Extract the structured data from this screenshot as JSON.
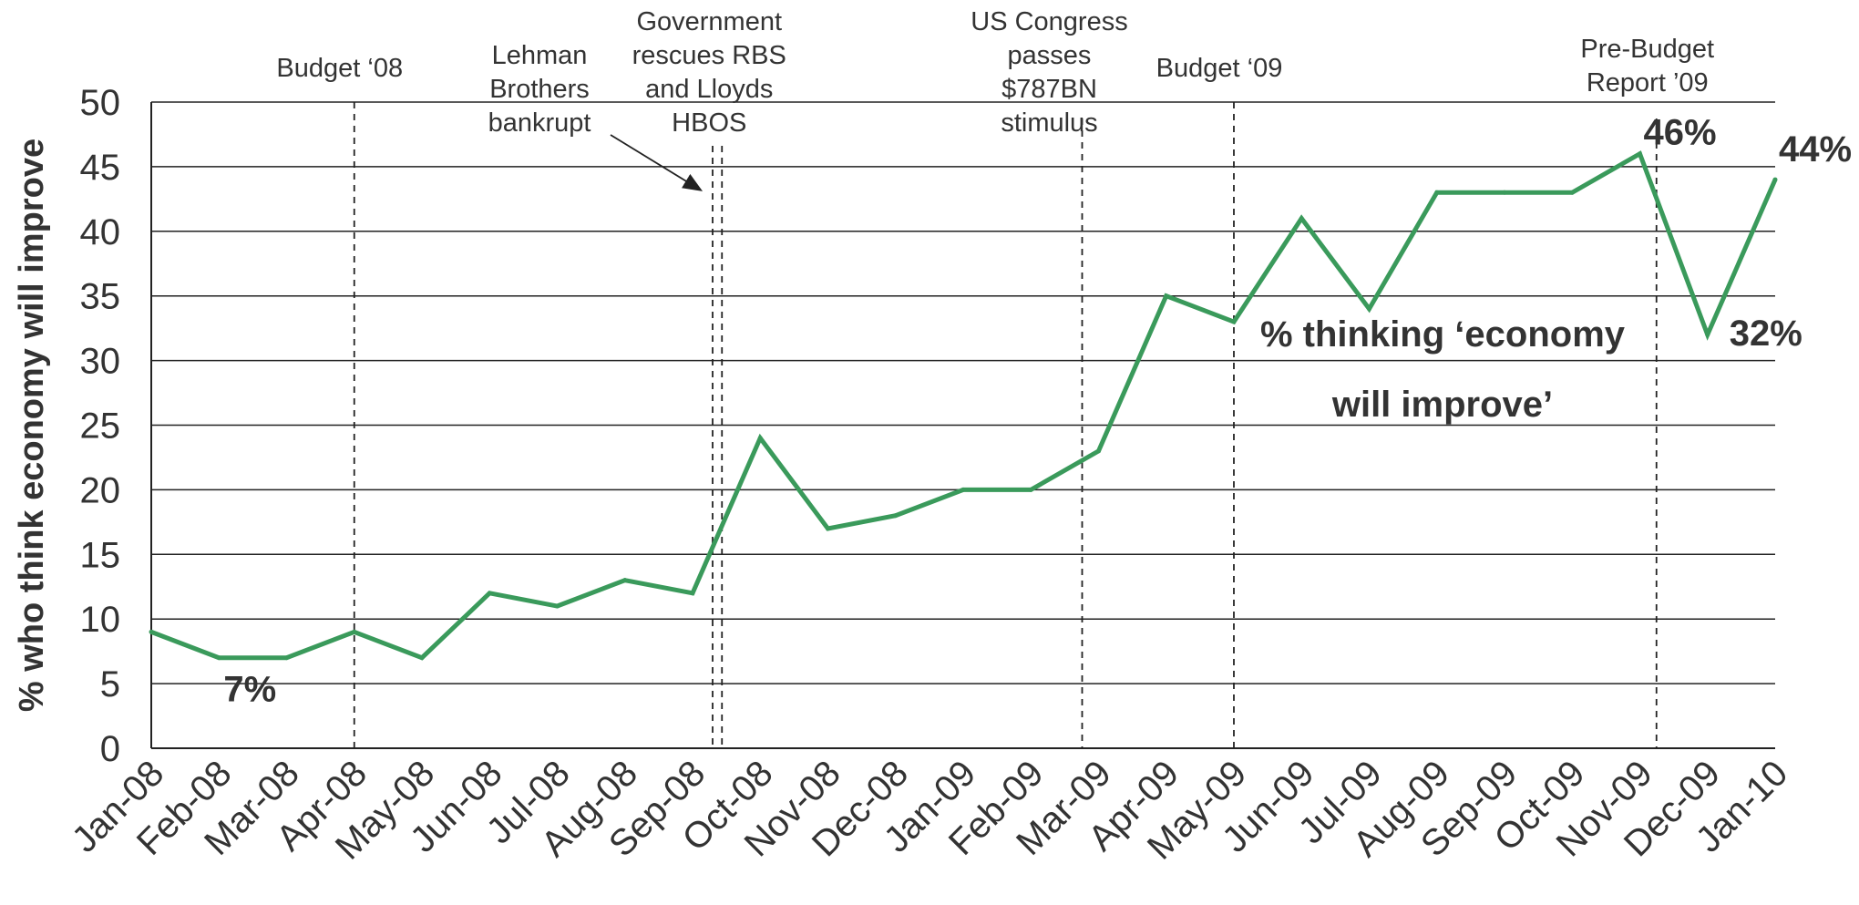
{
  "chart_data": {
    "type": "line",
    "ylabel": "% who think economy will improve",
    "ylim": [
      0,
      50
    ],
    "yticks": [
      "0",
      "5",
      "10",
      "15",
      "20",
      "25",
      "30",
      "35",
      "40",
      "45",
      "50"
    ],
    "categories": [
      "Jan-08",
      "Feb-08",
      "Mar-08",
      "Apr-08",
      "May-08",
      "Jun-08",
      "Jul-08",
      "Aug-08",
      "Sep-08",
      "Oct-08",
      "Nov-08",
      "Dec-08",
      "Jan-09",
      "Feb-09",
      "Mar-09",
      "Apr-09",
      "May-09",
      "Jun-09",
      "Jul-09",
      "Aug-09",
      "Sep-09",
      "Oct-09",
      "Nov-09",
      "Dec-09",
      "Jan-10"
    ],
    "series": [
      {
        "x": [
          "Jan-08",
          "Feb-08",
          "Mar-08",
          "Apr-08",
          "May-08",
          "Jun-08",
          "Jul-08",
          "Aug-08",
          "Sep-08",
          "Oct-08",
          "Nov-08",
          "Dec-08",
          "Jan-09",
          "Feb-09",
          "Mar-09",
          "Apr-09",
          "May-09",
          "Jun-09",
          "Jul-09",
          "Aug-09",
          "Sep-09",
          "Oct-09",
          "Nov-09",
          "Dec-09",
          "Jan-10"
        ],
        "values": [
          9,
          7,
          7,
          9,
          7,
          12,
          11,
          13,
          12,
          24,
          17,
          18,
          20,
          20,
          23,
          35,
          33,
          41,
          34,
          43,
          43,
          43,
          46,
          32,
          44
        ],
        "color": "#3a9a5b"
      }
    ],
    "grid": true,
    "events": [
      {
        "x": "Apr-08",
        "lines": [
          "Budget ‘08"
        ]
      },
      {
        "x": "Sep-08",
        "lines": [
          "Lehman",
          "Brothers",
          "bankrupt"
        ]
      },
      {
        "x": "Oct-08",
        "lines": [
          "Government",
          "rescues RBS",
          "and Lloyds",
          "HBOS"
        ]
      },
      {
        "x": "Mar-09",
        "lines": [
          "US Congress",
          "passes",
          "$787BN",
          "stimulus"
        ]
      },
      {
        "x": "May-09",
        "lines": [
          "Budget ‘09"
        ]
      },
      {
        "x": "Dec-09",
        "lines": [
          "Pre-Budget",
          "Report ’09"
        ]
      }
    ],
    "annotations": [
      {
        "text": "7%",
        "x": "Feb-08",
        "y": 7
      },
      {
        "text": "46%",
        "x": "Nov-09",
        "y": 46
      },
      {
        "text": "32%",
        "x": "Dec-09",
        "y": 32
      },
      {
        "text": "44%",
        "x": "Jan-10",
        "y": 44
      }
    ],
    "series_label_lines": [
      "% thinking ‘economy",
      "will improve’"
    ]
  }
}
